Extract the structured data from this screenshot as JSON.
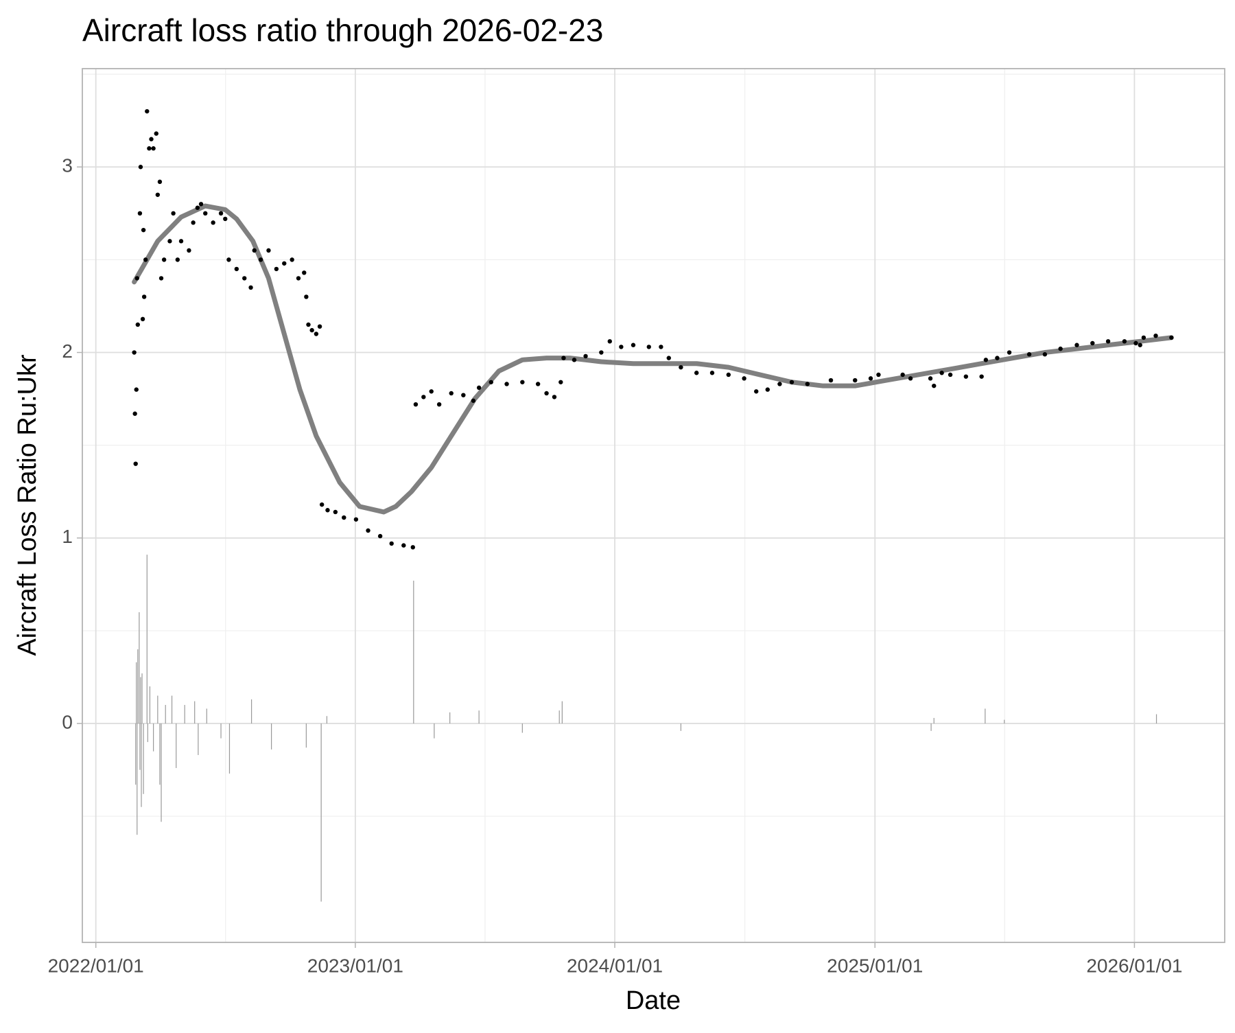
{
  "chart_data": {
    "type": "scatter",
    "title": "Aircraft loss ratio through 2026-02-23",
    "xlabel": "Date",
    "ylabel": "Aircraft Loss Ratio Ru:Ukr",
    "xlim": [
      "2021/12/13",
      "2026/05/08"
    ],
    "xticks": [
      "2022/01/01",
      "2023/01/01",
      "2024/01/01",
      "2025/01/01",
      "2026/01/01"
    ],
    "ylim": [
      -1.18,
      3.53
    ],
    "yticks": [
      0,
      1,
      2,
      3
    ],
    "grid": true,
    "series": [
      {
        "type": "bar",
        "color": "#999999",
        "x": [
          "2022/02/26",
          "2022/02/27",
          "2022/02/28",
          "2022/03/01",
          "2022/03/03",
          "2022/03/04",
          "2022/03/05",
          "2022/03/06",
          "2022/03/07",
          "2022/03/09",
          "2022/03/14",
          "2022/03/15",
          "2022/03/18",
          "2022/03/23",
          "2022/03/29",
          "2022/04/01",
          "2022/04/03",
          "2022/04/09",
          "2022/04/18",
          "2022/04/24",
          "2022/05/06",
          "2022/05/20",
          "2022/05/25",
          "2022/06/06",
          "2022/06/26",
          "2022/07/08",
          "2022/08/08",
          "2022/09/05",
          "2022/10/24",
          "2022/11/14",
          "2022/11/22",
          "2023/03/24",
          "2023/04/22",
          "2023/05/14",
          "2023/06/24",
          "2023/08/24",
          "2023/10/15",
          "2023/10/19",
          "2024/04/03",
          "2025/03/21",
          "2025/03/25",
          "2025/06/05",
          "2025/07/02",
          "2026/02/01"
        ],
        "values": [
          -0.33,
          0.33,
          -0.6,
          0.4,
          0.6,
          -0.25,
          0.25,
          -0.45,
          0.27,
          -0.38,
          0.91,
          -0.1,
          0.2,
          -0.15,
          0.15,
          -0.33,
          -0.53,
          0.1,
          0.15,
          -0.24,
          0.1,
          0.12,
          -0.17,
          0.08,
          -0.08,
          -0.27,
          0.13,
          -0.14,
          -0.13,
          -0.96,
          0.04,
          0.77,
          -0.08,
          0.06,
          0.07,
          -0.05,
          0.07,
          0.12,
          -0.04,
          -0.04,
          0.03,
          0.08,
          0.02,
          0.05
        ]
      },
      {
        "type": "line",
        "color": "#808080",
        "x": [
          "2022/02/24",
          "2022/03/29",
          "2022/05/01",
          "2022/06/04",
          "2022/07/02",
          "2022/07/18",
          "2022/08/10",
          "2022/09/01",
          "2022/09/23",
          "2022/10/15",
          "2022/11/07",
          "2022/12/10",
          "2023/01/07",
          "2023/02/10",
          "2023/02/27",
          "2023/03/21",
          "2023/04/18",
          "2023/05/16",
          "2023/06/18",
          "2023/07/22",
          "2023/08/24",
          "2023/09/27",
          "2023/10/30",
          "2023/12/13",
          "2024/01/27",
          "2024/04/25",
          "2024/06/09",
          "2024/07/23",
          "2024/09/06",
          "2024/10/20",
          "2024/12/04",
          "2025/01/17",
          "2025/03/03",
          "2025/04/17",
          "2025/05/31",
          "2025/07/14",
          "2025/08/28",
          "2025/10/12",
          "2025/11/25",
          "2026/01/09",
          "2026/02/22"
        ],
        "values": [
          2.38,
          2.6,
          2.73,
          2.79,
          2.77,
          2.72,
          2.6,
          2.4,
          2.1,
          1.8,
          1.55,
          1.3,
          1.17,
          1.14,
          1.17,
          1.25,
          1.38,
          1.55,
          1.75,
          1.9,
          1.96,
          1.97,
          1.97,
          1.95,
          1.94,
          1.94,
          1.92,
          1.88,
          1.84,
          1.82,
          1.82,
          1.85,
          1.88,
          1.91,
          1.94,
          1.97,
          2.0,
          2.02,
          2.04,
          2.06,
          2.08
        ]
      },
      {
        "type": "scatter",
        "color": "#000000",
        "x": [
          "2022/02/24",
          "2022/02/25",
          "2022/02/26",
          "2022/02/27",
          "2022/02/28",
          "2022/03/01",
          "2022/03/04",
          "2022/03/05",
          "2022/03/08",
          "2022/03/09",
          "2022/03/10",
          "2022/03/12",
          "2022/03/14",
          "2022/03/17",
          "2022/03/20",
          "2022/03/23",
          "2022/03/27",
          "2022/03/29",
          "2022/04/01",
          "2022/04/03",
          "2022/04/07",
          "2022/04/15",
          "2022/04/20",
          "2022/04/26",
          "2022/05/01",
          "2022/05/12",
          "2022/05/18",
          "2022/05/24",
          "2022/05/29",
          "2022/06/04",
          "2022/06/15",
          "2022/06/26",
          "2022/07/02",
          "2022/07/07",
          "2022/07/18",
          "2022/07/29",
          "2022/08/07",
          "2022/08/12",
          "2022/08/21",
          "2022/09/01",
          "2022/09/12",
          "2022/09/23",
          "2022/10/04",
          "2022/10/13",
          "2022/10/21",
          "2022/10/24",
          "2022/10/27",
          "2022/11/01",
          "2022/11/07",
          "2022/11/12",
          "2022/11/15",
          "2022/11/23",
          "2022/12/04",
          "2022/12/16",
          "2023/01/02",
          "2023/01/19",
          "2023/02/05",
          "2023/02/21",
          "2023/03/10",
          "2023/03/23",
          "2023/03/27",
          "2023/04/07",
          "2023/04/18",
          "2023/04/29",
          "2023/05/16",
          "2023/06/02",
          "2023/06/16",
          "2023/06/24",
          "2023/07/11",
          "2023/08/02",
          "2023/08/24",
          "2023/09/15",
          "2023/09/27",
          "2023/10/08",
          "2023/10/17",
          "2023/10/21",
          "2023/11/05",
          "2023/11/21",
          "2023/12/13",
          "2023/12/25",
          "2024/01/10",
          "2024/01/27",
          "2024/02/18",
          "2024/03/06",
          "2024/03/17",
          "2024/04/03",
          "2024/04/25",
          "2024/05/17",
          "2024/06/09",
          "2024/07/01",
          "2024/07/18",
          "2024/08/03",
          "2024/08/20",
          "2024/09/06",
          "2024/09/28",
          "2024/10/31",
          "2024/12/04",
          "2024/12/26",
          "2025/01/06",
          "2025/02/09",
          "2025/02/20",
          "2025/03/20",
          "2025/03/25",
          "2025/04/05",
          "2025/04/17",
          "2025/05/09",
          "2025/05/31",
          "2025/06/06",
          "2025/06/22",
          "2025/07/09",
          "2025/08/06",
          "2025/08/28",
          "2025/09/19",
          "2025/10/12",
          "2025/11/03",
          "2025/11/25",
          "2025/12/18",
          "2026/01/03",
          "2026/01/09",
          "2026/01/14",
          "2026/01/31",
          "2026/02/22"
        ],
        "values": [
          2.0,
          1.67,
          1.4,
          1.8,
          2.4,
          2.15,
          2.75,
          3.0,
          2.18,
          2.66,
          2.3,
          2.5,
          3.3,
          3.1,
          3.15,
          3.1,
          3.18,
          2.85,
          2.92,
          2.4,
          2.5,
          2.6,
          2.75,
          2.5,
          2.6,
          2.55,
          2.7,
          2.78,
          2.8,
          2.75,
          2.7,
          2.75,
          2.72,
          2.5,
          2.45,
          2.4,
          2.35,
          2.55,
          2.5,
          2.55,
          2.45,
          2.48,
          2.5,
          2.4,
          2.43,
          2.3,
          2.15,
          2.12,
          2.1,
          2.14,
          1.18,
          1.15,
          1.14,
          1.11,
          1.1,
          1.04,
          1.01,
          0.97,
          0.96,
          0.95,
          1.72,
          1.76,
          1.79,
          1.72,
          1.78,
          1.77,
          1.74,
          1.81,
          1.84,
          1.83,
          1.84,
          1.83,
          1.78,
          1.76,
          1.84,
          1.97,
          1.96,
          1.98,
          2.0,
          2.06,
          2.03,
          2.04,
          2.03,
          2.03,
          1.97,
          1.92,
          1.89,
          1.89,
          1.88,
          1.86,
          1.79,
          1.8,
          1.83,
          1.84,
          1.83,
          1.85,
          1.85,
          1.86,
          1.88,
          1.88,
          1.86,
          1.86,
          1.82,
          1.89,
          1.88,
          1.87,
          1.87,
          1.96,
          1.97,
          2.0,
          1.99,
          1.99,
          2.02,
          2.04,
          2.05,
          2.06,
          2.06,
          2.05,
          2.04,
          2.08,
          2.09,
          2.08
        ]
      }
    ]
  }
}
